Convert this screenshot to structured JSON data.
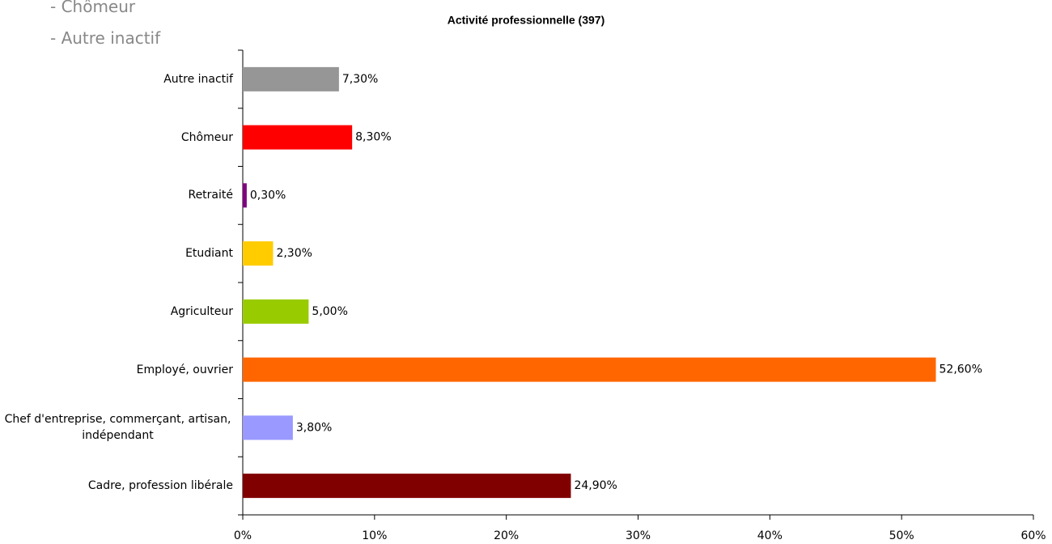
{
  "list_items": [
    "- Chômeur",
    "- Autre inactif"
  ],
  "chart_data": {
    "type": "barh",
    "title": "Activité professionnelle (397)",
    "categories": [
      "Cadre, profession libérale",
      "Chef d'entreprise, commerçant, artisan, indépendant",
      "Employé, ouvrier",
      "Agriculteur",
      "Etudiant",
      "Retraité",
      "Chômeur",
      "Autre inactif"
    ],
    "values": [
      24.9,
      3.8,
      52.6,
      5.0,
      2.3,
      0.3,
      8.3,
      7.3
    ],
    "value_labels": [
      "24,90%",
      "3,80%",
      "52,60%",
      "5,00%",
      "2,30%",
      "0,30%",
      "8,30%",
      "7,30%"
    ],
    "colors": [
      "#800000",
      "#9999ff",
      "#ff6600",
      "#99cc00",
      "#ffcc00",
      "#800080",
      "#ff0000",
      "#969696"
    ],
    "xlim": [
      0,
      60
    ],
    "xticks": [
      {
        "value": 0,
        "label": "0%"
      },
      {
        "value": 10,
        "label": "10%"
      },
      {
        "value": 20,
        "label": "20%"
      },
      {
        "value": 30,
        "label": "30%"
      },
      {
        "value": 40,
        "label": "40%"
      },
      {
        "value": 50,
        "label": "50%"
      },
      {
        "value": 60,
        "label": "60%"
      }
    ],
    "grid": false
  }
}
